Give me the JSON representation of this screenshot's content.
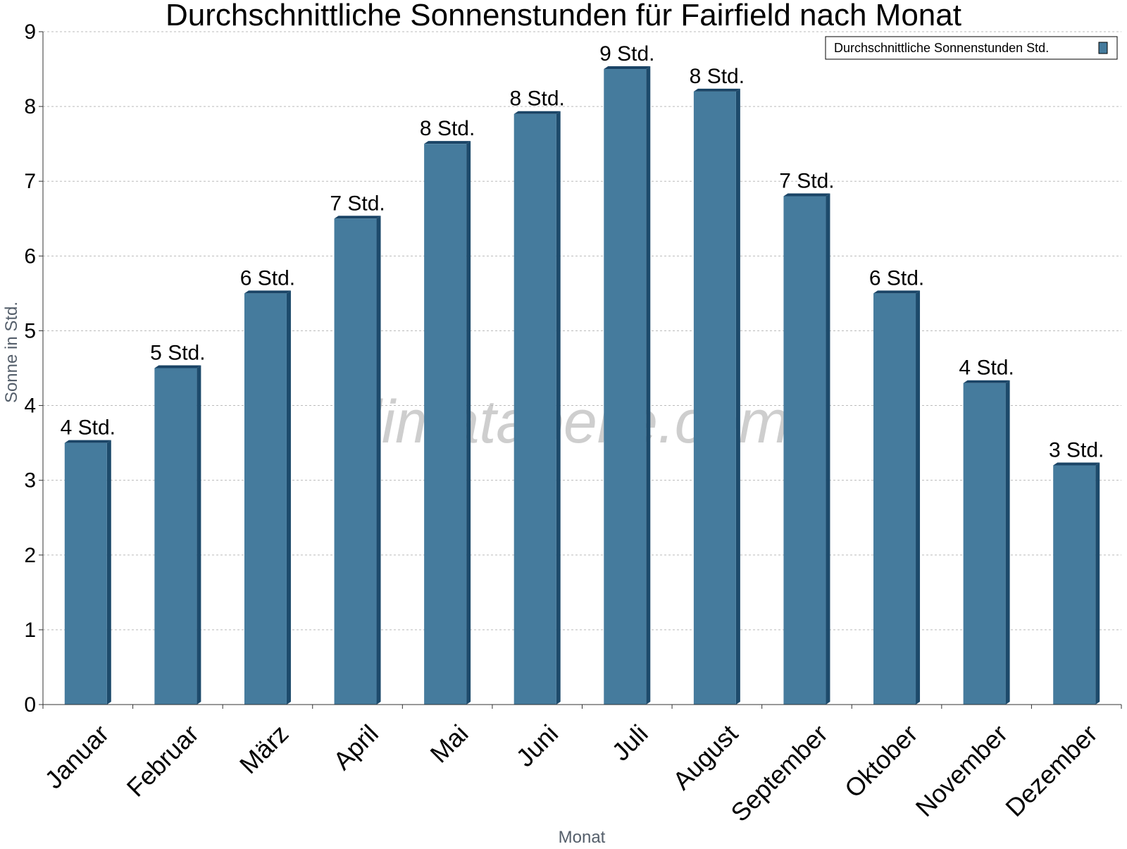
{
  "colors": {
    "bar": "#457b9d",
    "bar_side": "#1d4a6b",
    "bar_top": "#1a4466",
    "grid": "#bbbbbb",
    "axis": "#333333"
  },
  "watermark": "klimatabelle.com",
  "chart_data": {
    "type": "bar",
    "title": "Durchschnittliche Sonnenstunden für Fairfield nach Monat",
    "xlabel": "Monat",
    "ylabel": "Sonne in Std.",
    "ylim": [
      0,
      9
    ],
    "yticks": [
      "0",
      "1",
      "2",
      "3",
      "4",
      "5",
      "6",
      "7",
      "8",
      "9"
    ],
    "grid": true,
    "legend_position": "top-right",
    "categories": [
      "Januar",
      "Februar",
      "März",
      "April",
      "Mai",
      "Juni",
      "Juli",
      "August",
      "September",
      "Oktober",
      "November",
      "Dezember"
    ],
    "series": [
      {
        "name": "Durchschnittliche Sonnenstunden Std.",
        "values": [
          3.5,
          4.5,
          5.5,
          6.5,
          7.5,
          7.9,
          8.5,
          8.2,
          6.8,
          5.5,
          4.3,
          3.2
        ],
        "labels": [
          "4 Std.",
          "5 Std.",
          "6 Std.",
          "7 Std.",
          "8 Std.",
          "8 Std.",
          "9 Std.",
          "8 Std.",
          "7 Std.",
          "6 Std.",
          "4 Std.",
          "3 Std."
        ]
      }
    ]
  }
}
